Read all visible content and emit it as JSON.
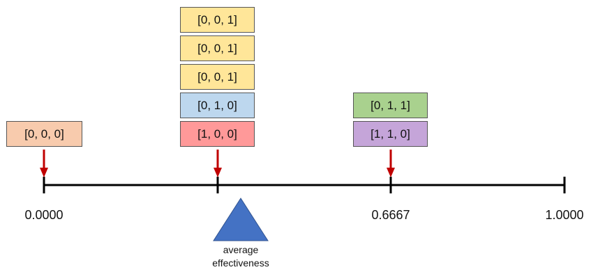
{
  "colors": {
    "orange": "#F8CBAD",
    "red": "#FF9999",
    "blue": "#BDD7EE",
    "yellow": "#FFE699",
    "green": "#A9D18E",
    "purple": "#C5A5D9",
    "arrow": "#C00000",
    "triangle": "#4472C4",
    "axis": "#000000"
  },
  "axis": {
    "tick_labels": [
      "0.0000",
      "",
      "0.6667",
      "1.0000"
    ]
  },
  "groups": [
    {
      "label": "0.0000",
      "boxes": [
        {
          "text": "[0, 0, 0]",
          "color": "orange"
        }
      ]
    },
    {
      "label": "",
      "boxes": [
        {
          "text": "[1, 0, 0]",
          "color": "red"
        },
        {
          "text": "[0, 1, 0]",
          "color": "blue"
        },
        {
          "text": "[0, 0, 1]",
          "color": "yellow"
        },
        {
          "text": "[0, 0, 1]",
          "color": "yellow"
        },
        {
          "text": "[0, 0, 1]",
          "color": "yellow"
        }
      ]
    },
    {
      "label": "0.6667",
      "boxes": [
        {
          "text": "[1, 1, 0]",
          "color": "purple"
        },
        {
          "text": "[0, 1, 1]",
          "color": "green"
        }
      ]
    }
  ],
  "marker": {
    "line1": "average",
    "line2": "effectiveness"
  }
}
